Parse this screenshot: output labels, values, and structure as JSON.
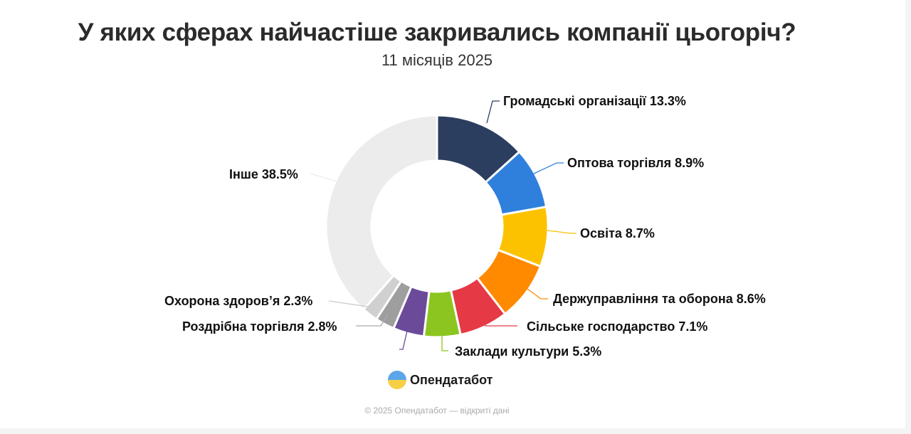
{
  "chart_data": {
    "type": "pie",
    "title": "У яких сферах найчастіше закривались компанії цьогоріч?",
    "subtitle": "11 місяців 2025",
    "slices": [
      {
        "name": "Громадські організації",
        "value": 13.3,
        "label": "Громадські організації 13.3%",
        "color": "#2c3e5f"
      },
      {
        "name": "Оптова торгівля",
        "value": 8.9,
        "label": "Оптова торгівля 8.9%",
        "color": "#2f80dd"
      },
      {
        "name": "Освіта",
        "value": 8.7,
        "label": "Освіта 8.7%",
        "color": "#fcc200"
      },
      {
        "name": "Держуправління та оборона",
        "value": 8.6,
        "label": "Держуправління та оборона 8.6%",
        "color": "#ff8a00"
      },
      {
        "name": "Сільське господарство",
        "value": 7.1,
        "label": "Сільське господарство 7.1%",
        "color": "#e63946"
      },
      {
        "name": "Заклади культури",
        "value": 5.3,
        "label": "Заклади культури 5.3%",
        "color": "#8cc520"
      },
      {
        "name": "",
        "value": 4.5,
        "label": "",
        "color": "#6b4a9a"
      },
      {
        "name": "Роздрібна торгівля",
        "value": 2.8,
        "label": "Роздрібна торгівля 2.8%",
        "color": "#9e9e9e"
      },
      {
        "name": "Охорона здоров’я",
        "value": 2.3,
        "label": "Охорона здоров’я 2.3%",
        "color": "#d0d0d0"
      },
      {
        "name": "Інше",
        "value": 38.5,
        "label": "Інше 38.5%",
        "color": "#ececec"
      }
    ]
  },
  "brand": "Опендатабот",
  "footer": "© 2025 Опендатабот — відкриті дані"
}
